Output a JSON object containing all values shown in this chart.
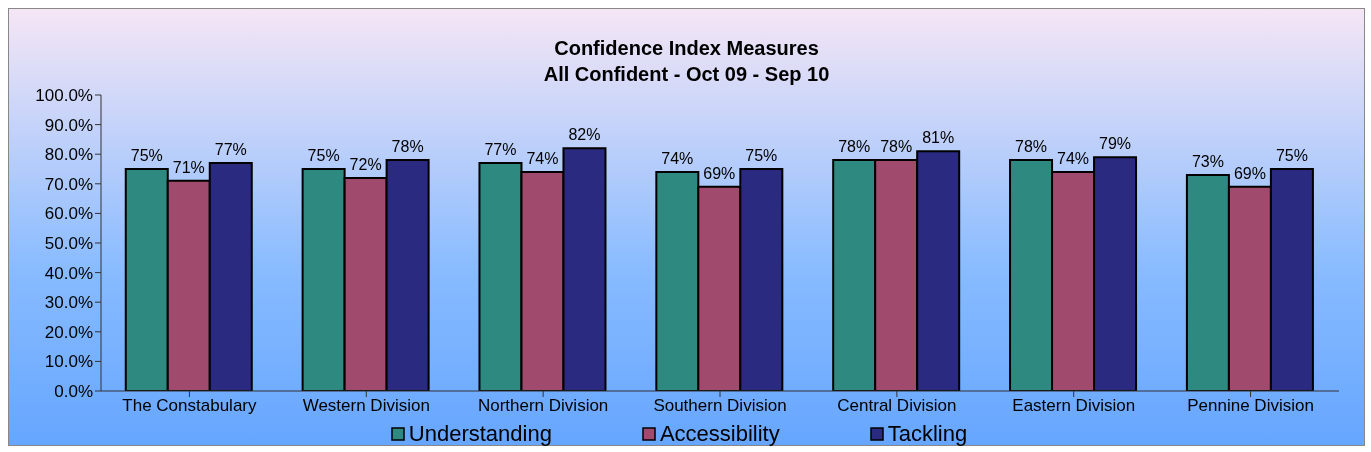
{
  "chart_data": {
    "type": "bar",
    "title": "Confidence Index Measures",
    "subtitle": "All Confident - Oct 09 - Sep 10",
    "categories": [
      "The Constabulary",
      "Western Division",
      "Northern Division",
      "Southern Division",
      "Central Division",
      "Eastern Division",
      "Pennine Division"
    ],
    "series": [
      {
        "name": "Understanding",
        "color": "#2e8a80",
        "values": [
          75,
          75,
          77,
          74,
          78,
          78,
          73
        ],
        "value_labels": [
          "75%",
          "75%",
          "77%",
          "74%",
          "78%",
          "78%",
          "73%"
        ]
      },
      {
        "name": "Accessibility",
        "color": "#a04a6e",
        "values": [
          71,
          72,
          74,
          69,
          78,
          74,
          69
        ],
        "value_labels": [
          "71%",
          "72%",
          "74%",
          "69%",
          "78%",
          "74%",
          "69%"
        ]
      },
      {
        "name": "Tackling",
        "color": "#2a2a80",
        "values": [
          77,
          78,
          82,
          75,
          81,
          79,
          75
        ],
        "value_labels": [
          "77%",
          "78%",
          "82%",
          "75%",
          "81%",
          "79%",
          "75%"
        ]
      }
    ],
    "ylim": [
      0,
      100
    ],
    "yticks": [
      {
        "value": 0,
        "label": "0.0%"
      },
      {
        "value": 10,
        "label": "10.0%"
      },
      {
        "value": 20,
        "label": "20.0%"
      },
      {
        "value": 30,
        "label": "30.0%"
      },
      {
        "value": 40,
        "label": "40.0%"
      },
      {
        "value": 50,
        "label": "50.0%"
      },
      {
        "value": 60,
        "label": "60.0%"
      },
      {
        "value": 70,
        "label": "70.0%"
      },
      {
        "value": 80,
        "label": "80.0%"
      },
      {
        "value": 90,
        "label": "90.0%"
      },
      {
        "value": 100,
        "label": "100.0%"
      }
    ],
    "grid": false,
    "legend": "bottom"
  }
}
